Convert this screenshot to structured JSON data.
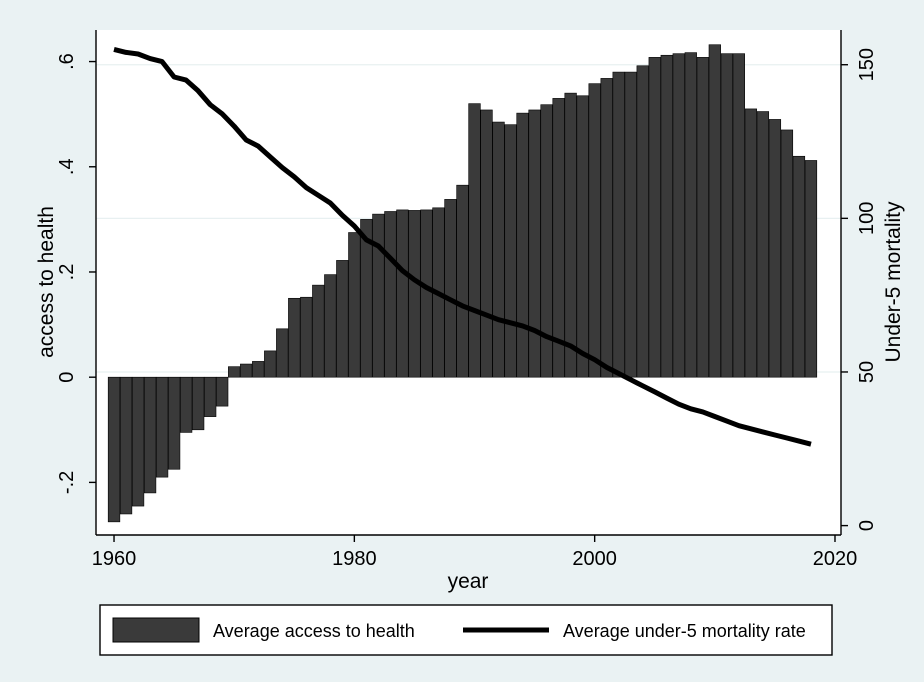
{
  "chart_data": {
    "type": "bar+line",
    "xlabel": "year",
    "ylabel_left": "access to health",
    "ylabel_right": "Under-5 mortality",
    "xlim": [
      1958.5,
      2020.5
    ],
    "ylim_left": [
      -0.3,
      0.66
    ],
    "ylim_right": [
      -3.06,
      161.3
    ],
    "x_ticks": [
      1960,
      1980,
      2000,
      2020
    ],
    "x_tick_labels": [
      "1960",
      "1980",
      "2000",
      "2020"
    ],
    "y_left_ticks": [
      -0.2,
      0,
      0.2,
      0.4,
      0.6
    ],
    "y_left_tick_labels": [
      "-.2",
      "0",
      ".2",
      ".4",
      ".6"
    ],
    "y_right_ticks": [
      0,
      50,
      100,
      150
    ],
    "y_right_tick_labels": [
      "0",
      "50",
      "100",
      "150"
    ],
    "grid": "horizontal (right axis)",
    "legend_position": "bottom",
    "colors": {
      "bar": "#3a3a3a",
      "line": "#000000",
      "plot_bg": "#ffffff",
      "page_bg": "#eaf2f3",
      "grid": "#e8f0f1"
    },
    "series": [
      {
        "name": "Average access to health",
        "kind": "bar",
        "axis": "left",
        "x": [
          1960,
          1961,
          1962,
          1963,
          1964,
          1965,
          1966,
          1967,
          1968,
          1969,
          1970,
          1971,
          1972,
          1973,
          1974,
          1975,
          1976,
          1977,
          1978,
          1979,
          1980,
          1981,
          1982,
          1983,
          1984,
          1985,
          1986,
          1987,
          1988,
          1989,
          1990,
          1991,
          1992,
          1993,
          1994,
          1995,
          1996,
          1997,
          1998,
          1999,
          2000,
          2001,
          2002,
          2003,
          2004,
          2005,
          2006,
          2007,
          2008,
          2009,
          2010,
          2011,
          2012,
          2013,
          2014,
          2015,
          2016,
          2017,
          2018
        ],
        "values": [
          -0.275,
          -0.26,
          -0.245,
          -0.22,
          -0.19,
          -0.175,
          -0.105,
          -0.1,
          -0.075,
          -0.055,
          0.02,
          0.025,
          0.03,
          0.05,
          0.092,
          0.15,
          0.152,
          0.175,
          0.195,
          0.222,
          0.275,
          0.3,
          0.31,
          0.315,
          0.318,
          0.317,
          0.318,
          0.322,
          0.338,
          0.365,
          0.52,
          0.508,
          0.485,
          0.48,
          0.502,
          0.508,
          0.518,
          0.53,
          0.54,
          0.535,
          0.558,
          0.568,
          0.58,
          0.58,
          0.592,
          0.608,
          0.612,
          0.615,
          0.617,
          0.608,
          0.632,
          0.615,
          0.615,
          0.51,
          0.505,
          0.49,
          0.47,
          0.42,
          0.412
        ]
      },
      {
        "name": "Average under-5 mortality rate",
        "kind": "line",
        "axis": "right",
        "x": [
          1960,
          1961,
          1962,
          1963,
          1964,
          1965,
          1966,
          1967,
          1968,
          1969,
          1970,
          1971,
          1972,
          1973,
          1974,
          1975,
          1976,
          1977,
          1978,
          1979,
          1980,
          1981,
          1982,
          1983,
          1984,
          1985,
          1986,
          1987,
          1988,
          1989,
          1990,
          1991,
          1992,
          1993,
          1994,
          1995,
          1996,
          1997,
          1998,
          1999,
          2000,
          2001,
          2002,
          2003,
          2004,
          2005,
          2006,
          2007,
          2008,
          2009,
          2010,
          2011,
          2012,
          2013,
          2014,
          2015,
          2016,
          2017,
          2018
        ],
        "values": [
          155,
          154,
          153.5,
          152,
          151,
          146,
          145,
          141.5,
          137,
          134,
          130,
          125.5,
          123.5,
          120,
          116.5,
          113.5,
          110,
          107.5,
          105,
          101,
          97.5,
          93,
          91,
          87,
          83,
          80,
          77.5,
          75.5,
          73.5,
          71.5,
          70,
          68.5,
          67,
          66,
          65,
          63.5,
          61.5,
          60,
          58.5,
          56,
          54,
          51.5,
          49.5,
          47.5,
          45.5,
          43.5,
          41.5,
          39.5,
          38,
          37,
          35.5,
          34,
          32.5,
          31.5,
          30.5,
          29.5,
          28.5,
          27.5,
          26.5
        ]
      }
    ],
    "legend": [
      {
        "label": "Average access to health",
        "kind": "bar"
      },
      {
        "label": "Average under-5 mortality rate",
        "kind": "line"
      }
    ]
  }
}
